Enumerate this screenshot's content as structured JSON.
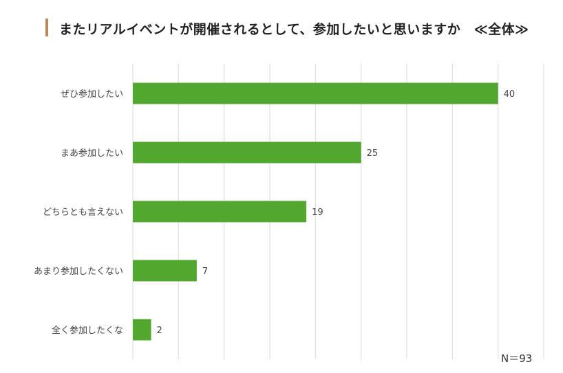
{
  "title": "またリアルイベントが開催されるとして、参加したいと思いますか　≪全体≫",
  "sample_size_label": "N＝93",
  "colors": {
    "bar": "#52a82e",
    "grid": "#d9d9d9",
    "accent": "#b8875a"
  },
  "chart_data": {
    "type": "bar",
    "orientation": "horizontal",
    "categories": [
      "ぜひ参加したい",
      "まあ参加したい",
      "どちらとも言えない",
      "あまり参加したくない",
      "全く参加したくな"
    ],
    "values": [
      40,
      25,
      19,
      7,
      2
    ],
    "xlim": [
      0,
      45
    ],
    "grid": true,
    "legend": "none"
  }
}
